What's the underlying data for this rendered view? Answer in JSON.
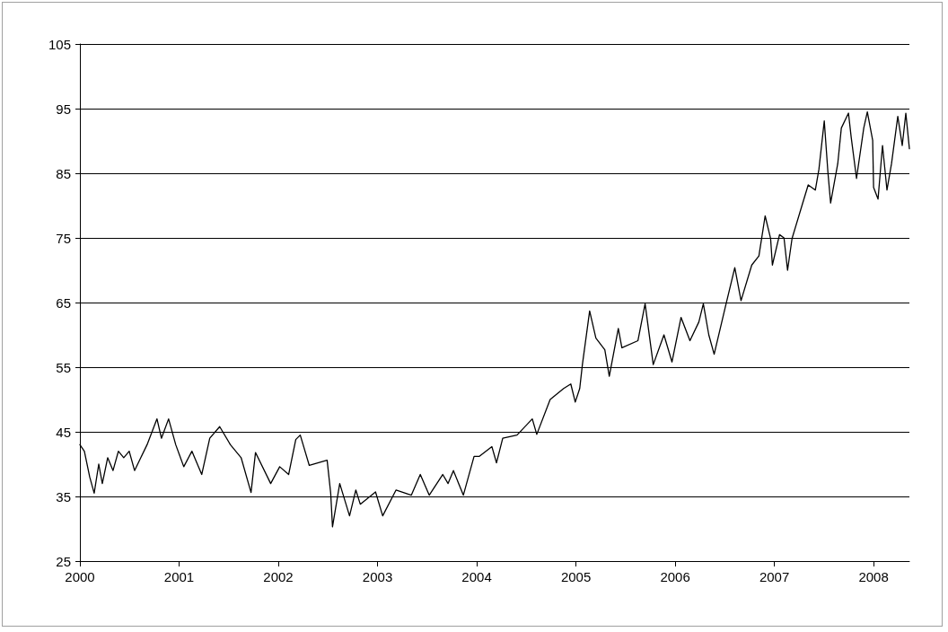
{
  "chart_data": {
    "type": "line",
    "x": [
      2000,
      2000.045,
      2000.099,
      2000.144,
      2000.19,
      2000.226,
      2000.28,
      2000.334,
      2000.388,
      2000.442,
      2000.497,
      2000.551,
      2000.614,
      2000.677,
      2000.777,
      2000.822,
      2000.894,
      2000.966,
      2001.047,
      2001.129,
      2001.228,
      2001.309,
      2001.409,
      2001.517,
      2001.625,
      2001.725,
      2001.77,
      2001.923,
      2002.014,
      2002.104,
      2002.176,
      2002.221,
      2002.312,
      2002.492,
      2002.528,
      2002.546,
      2002.619,
      2002.718,
      2002.781,
      2002.826,
      2002.98,
      2003.052,
      2003.187,
      2003.341,
      2003.431,
      2003.521,
      2003.657,
      2003.711,
      2003.765,
      2003.865,
      2003.973,
      2004.027,
      2004.153,
      2004.199,
      2004.262,
      2004.406,
      2004.56,
      2004.605,
      2004.74,
      2004.876,
      2004.948,
      2004.993,
      2005.038,
      2005.065,
      2005.138,
      2005.201,
      2005.291,
      2005.336,
      2005.427,
      2005.463,
      2005.625,
      2005.697,
      2005.779,
      2005.887,
      2005.968,
      2006.059,
      2006.149,
      2006.239,
      2006.284,
      2006.339,
      2006.393,
      2006.501,
      2006.601,
      2006.664,
      2006.772,
      2006.844,
      2006.907,
      2006.962,
      2006.98,
      2007.052,
      2007.097,
      2007.133,
      2007.178,
      2007.278,
      2007.341,
      2007.413,
      2007.449,
      2007.503,
      2007.54,
      2007.567,
      2007.639,
      2007.675,
      2007.747,
      2007.774,
      2007.828,
      2007.901,
      2007.937,
      2007.991,
      2008,
      2008.045,
      2008.09,
      2008.135,
      2008.181,
      2008.244,
      2008.289,
      2008.325,
      2008.361
    ],
    "series": [
      {
        "color": "#000000",
        "values": [
          43,
          42,
          38,
          35.5,
          40,
          37,
          41,
          39,
          42,
          41,
          42,
          39,
          41,
          43,
          47,
          44,
          47,
          43,
          39.6,
          42,
          38.4,
          44,
          45.8,
          43,
          41,
          35.6,
          41.8,
          37,
          39.6,
          38.4,
          43.8,
          44.5,
          39.8,
          40.6,
          35.5,
          30.3,
          37,
          32,
          36,
          33.8,
          35.7,
          32,
          36,
          35.2,
          38.4,
          35.2,
          38.4,
          37,
          39,
          35.2,
          41.2,
          41.2,
          42.7,
          40.2,
          44,
          44.5,
          47,
          44.6,
          50,
          51.7,
          52.4,
          49.6,
          51.7,
          55.4,
          63.7,
          59.5,
          57.7,
          53.6,
          61,
          58,
          59.1,
          64.8,
          55.4,
          60,
          55.8,
          62.7,
          59.1,
          62,
          64.8,
          60,
          57,
          64,
          70.4,
          65.3,
          70.8,
          72.2,
          78.4,
          74.9,
          70.8,
          75.5,
          75,
          70,
          74.9,
          80,
          83.2,
          82.4,
          85.6,
          93.1,
          85.1,
          80.4,
          86.5,
          92,
          94.3,
          90.6,
          84.2,
          92,
          94.5,
          90.1,
          82.8,
          81,
          89.3,
          82.4,
          86.5,
          93.8,
          89.3,
          94.3,
          88.8
        ]
      }
    ],
    "xlim": [
      2000,
      2008.361
    ],
    "xticks": [
      2000,
      2001,
      2002,
      2003,
      2004,
      2005,
      2006,
      2007,
      2008
    ],
    "ylim": [
      25,
      105
    ],
    "yticks": [
      25,
      35,
      45,
      55,
      65,
      75,
      85,
      95,
      105
    ],
    "grid": "y",
    "marker": "none",
    "line_style": "solid"
  }
}
